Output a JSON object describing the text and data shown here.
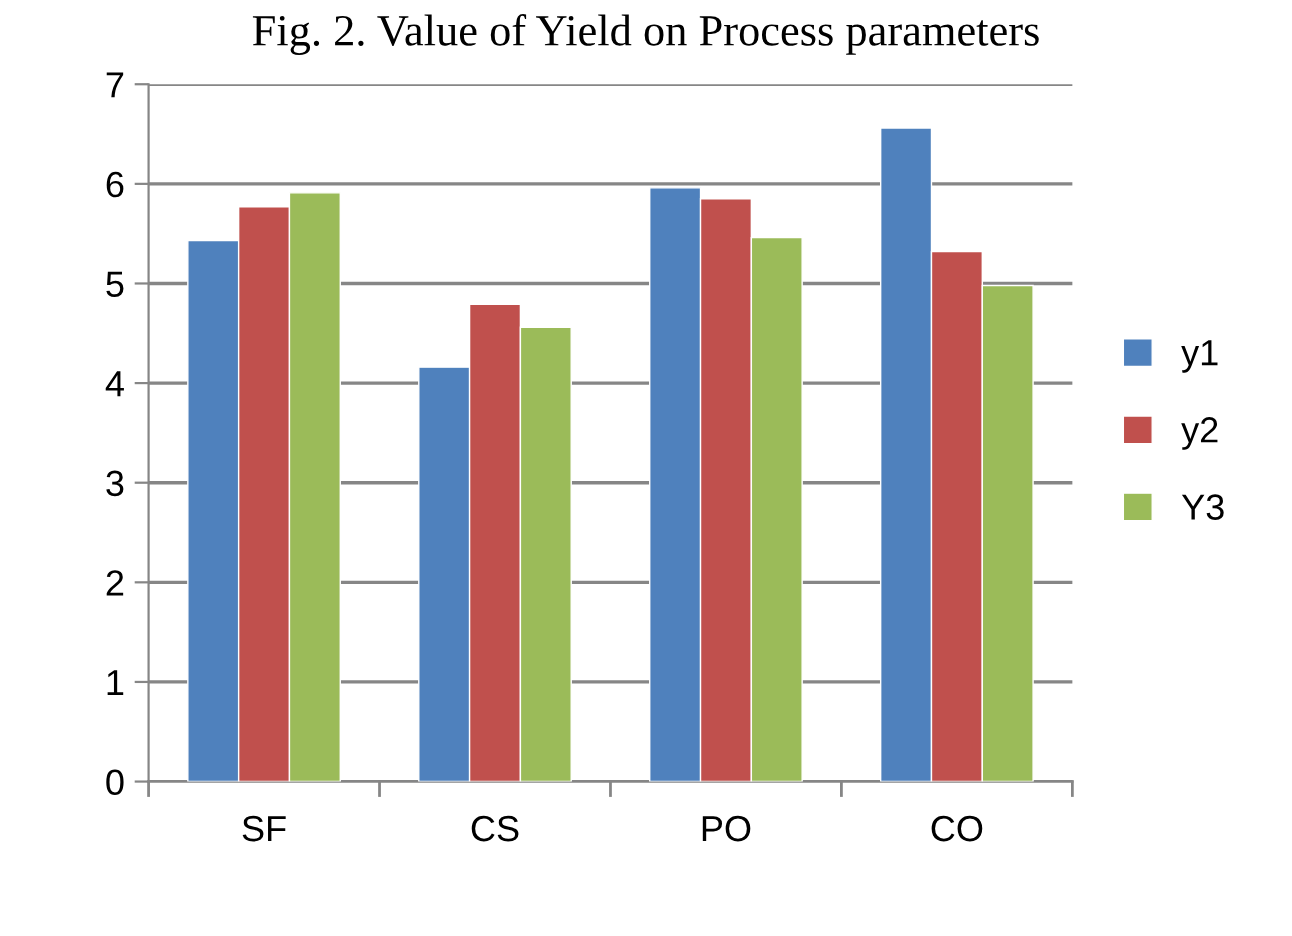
{
  "chart_data": {
    "type": "bar",
    "title": "Fig. 2. Value of Yield on Process parameters",
    "categories": [
      "SF",
      "CS",
      "PO",
      "CO"
    ],
    "series": [
      {
        "name": "y1",
        "color": "#4f81bd",
        "values": [
          5.43,
          4.16,
          5.96,
          6.56
        ]
      },
      {
        "name": "y2",
        "color": "#c0504d",
        "values": [
          5.77,
          4.79,
          5.85,
          5.32
        ]
      },
      {
        "name": "Y3",
        "color": "#9bbb59",
        "values": [
          5.91,
          4.56,
          5.46,
          4.98
        ]
      }
    ],
    "ylim": [
      0,
      7
    ],
    "yticks": [
      0,
      1,
      2,
      3,
      4,
      5,
      6,
      7
    ],
    "grid": "y",
    "legend": "right"
  }
}
